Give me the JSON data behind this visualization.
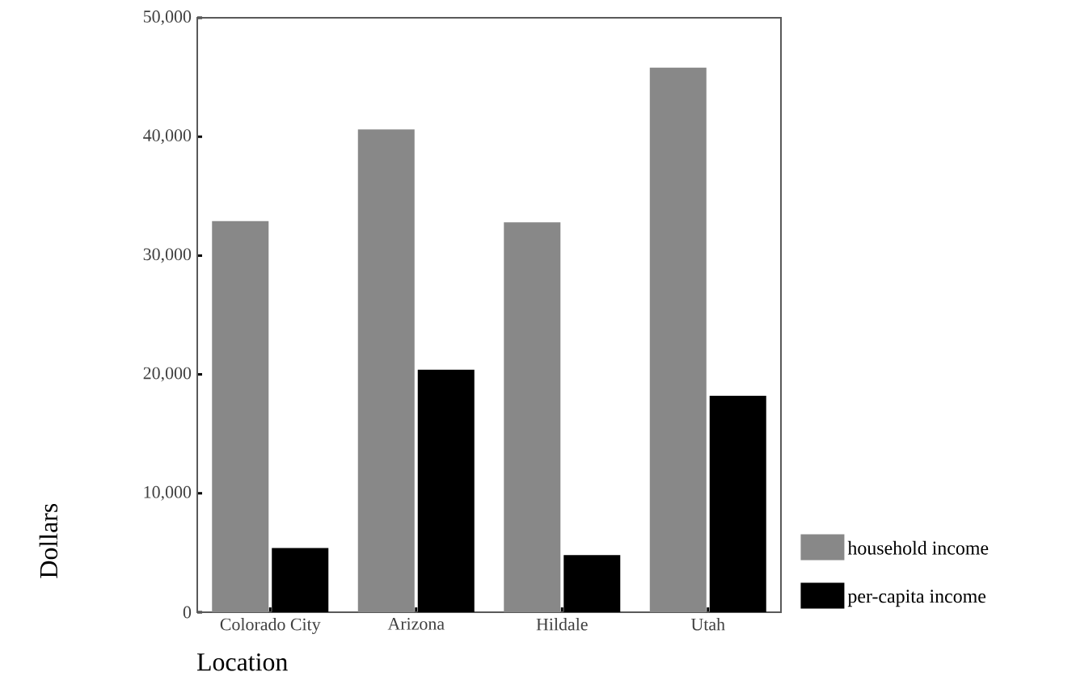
{
  "chart_data": {
    "type": "bar",
    "xlabel": "Location",
    "ylabel": "Dollars",
    "categories": [
      "Colorado City",
      "Arizona",
      "Hildale",
      "Utah"
    ],
    "series": [
      {
        "name": "household income",
        "color": "#888888",
        "values": [
          32900,
          40600,
          32800,
          45800
        ]
      },
      {
        "name": "per-capita income",
        "color": "#000000",
        "values": [
          5400,
          20400,
          4800,
          18200
        ]
      }
    ],
    "ylim": [
      0,
      50000
    ],
    "yticks": [
      0,
      {
        "value": 10000,
        "label": "10,000"
      },
      {
        "value": 20000,
        "label": "20,000"
      },
      {
        "value": 30000,
        "label": "30,000"
      },
      {
        "value": 40000,
        "label": "40,000"
      },
      {
        "value": 50000,
        "label": "50,000"
      }
    ],
    "grid": false,
    "legend": "right"
  }
}
